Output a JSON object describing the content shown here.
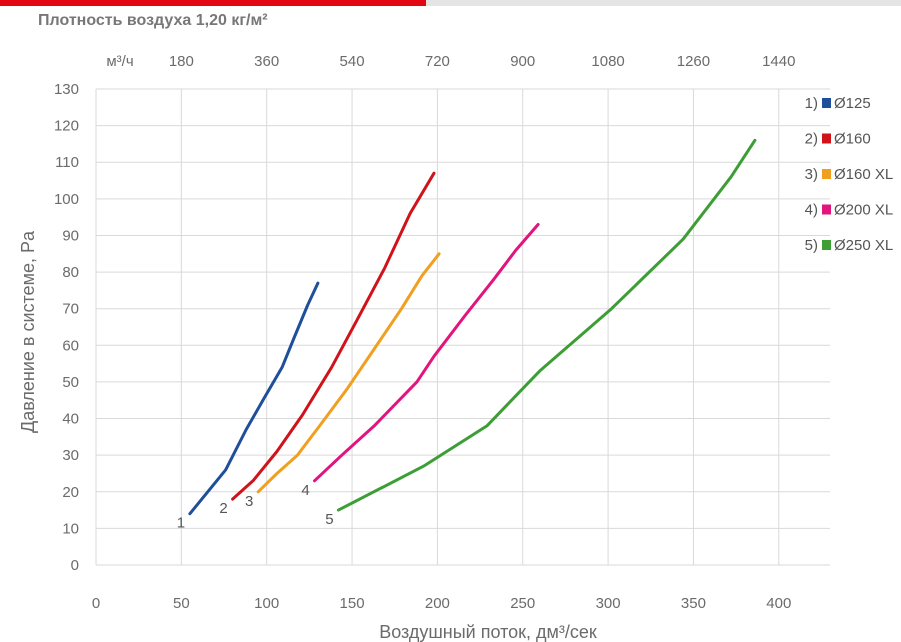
{
  "header": {
    "title": "Плотность воздуха 1,20 кг/м²",
    "accent_color": "#e30613"
  },
  "chart_data": {
    "type": "line",
    "title": "Плотность воздуха 1,20 кг/м²",
    "xlabel": "Воздушный поток, дм³/сек",
    "ylabel": "Давление в системе, Pa",
    "x2label": "м³/ч",
    "xlim": [
      0,
      430
    ],
    "ylim": [
      0,
      130
    ],
    "x_ticks": [
      0,
      50,
      100,
      150,
      200,
      250,
      300,
      350,
      400
    ],
    "y_ticks": [
      0,
      10,
      20,
      30,
      40,
      50,
      60,
      70,
      80,
      90,
      100,
      110,
      120,
      130
    ],
    "x2_ticks": [
      180,
      360,
      540,
      720,
      900,
      1080,
      1260,
      1440
    ],
    "grid": true,
    "legend_position": "top-right",
    "series": [
      {
        "name": "Ø125",
        "legend_num": "1)",
        "label": "1",
        "color": "#1f4e9b",
        "x": [
          55,
          76,
          88,
          99,
          109,
          116,
          124,
          130
        ],
        "y": [
          14,
          26,
          37,
          46,
          54,
          62,
          71,
          77
        ]
      },
      {
        "name": "Ø160",
        "legend_num": "2)",
        "label": "2",
        "color": "#d0121b",
        "x": [
          80,
          92,
          106,
          121,
          138,
          153,
          169,
          184,
          198
        ],
        "y": [
          18,
          23,
          31,
          41,
          54,
          67,
          81,
          96,
          107
        ]
      },
      {
        "name": "Ø160 XL",
        "legend_num": "3)",
        "label": "3",
        "color": "#f0a01e",
        "x": [
          95,
          106,
          118,
          131,
          147,
          163,
          179,
          191,
          201
        ],
        "y": [
          20,
          25,
          30,
          38,
          48,
          59,
          70,
          79,
          85
        ]
      },
      {
        "name": "Ø200 XL",
        "legend_num": "4)",
        "label": "4",
        "color": "#e2147d",
        "x": [
          128,
          144,
          163,
          188,
          198,
          216,
          233,
          246,
          259
        ],
        "y": [
          23,
          30,
          38,
          50,
          57,
          68,
          78,
          86,
          93
        ]
      },
      {
        "name": "Ø250 XL",
        "legend_num": "5)",
        "label": "5",
        "color": "#3c9e35",
        "x": [
          142,
          192,
          229,
          260,
          302,
          344,
          372,
          386
        ],
        "y": [
          15,
          27,
          38,
          53,
          70,
          89,
          106,
          116
        ]
      }
    ]
  }
}
